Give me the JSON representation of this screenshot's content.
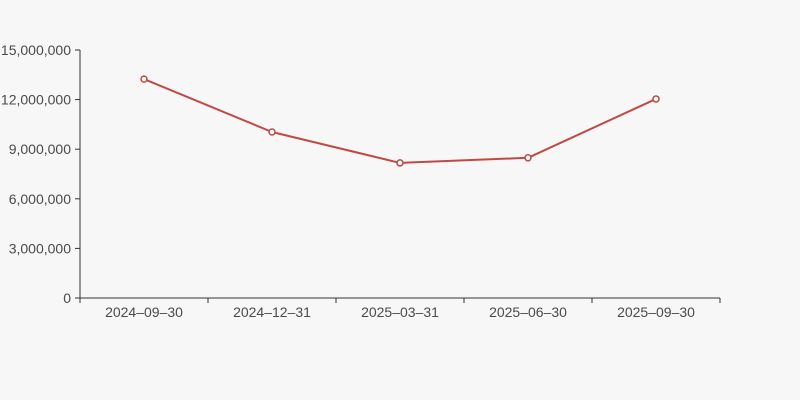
{
  "chart_data": {
    "type": "line",
    "title": "",
    "categories": [
      "2024–09–30",
      "2024–12–31",
      "2025–03–31",
      "2025–06–30",
      "2025–09–30"
    ],
    "values": [
      13240000,
      10040000,
      8170000,
      8480000,
      12040000
    ],
    "xlabel": "",
    "ylabel": "",
    "ylim": [
      0,
      15000000
    ],
    "y_ticks": [
      0,
      3000000,
      6000000,
      9000000,
      12000000,
      15000000
    ],
    "y_tick_labels": [
      "0",
      "3,000,000",
      "6,000,000",
      "9,000,000",
      "12,000,000",
      "15,000,000"
    ],
    "grid": false,
    "legend": false,
    "marker": "hollow-circle",
    "colors": {
      "background": "#f7f7f7",
      "line": "#c14944",
      "marker_fill": "#ffffff",
      "axis": "#333333",
      "label": "#4a4a4a"
    }
  }
}
